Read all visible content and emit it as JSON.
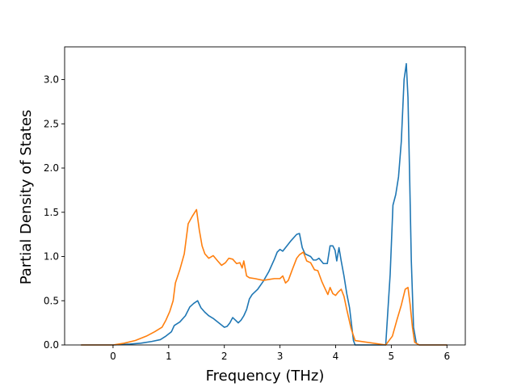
{
  "chart_data": {
    "type": "line",
    "xlabel": "Frequency (THz)",
    "ylabel": "Partial Density of States",
    "xlim": [
      -0.87,
      6.33
    ],
    "ylim": [
      0.0,
      3.37
    ],
    "xticks": [
      0,
      1,
      2,
      3,
      4,
      5,
      6
    ],
    "xtick_labels": [
      "0",
      "1",
      "2",
      "3",
      "4",
      "5",
      "6"
    ],
    "yticks": [
      0.0,
      0.5,
      1.0,
      1.5,
      2.0,
      2.5,
      3.0
    ],
    "ytick_labels": [
      "0.0",
      "0.5",
      "1.0",
      "1.5",
      "2.0",
      "2.5",
      "3.0"
    ],
    "grid": false,
    "series": [
      {
        "color": "#1f77b4",
        "x": [
          -0.57,
          0.0,
          0.3,
          0.5,
          0.7,
          0.85,
          0.95,
          1.05,
          1.1,
          1.2,
          1.3,
          1.38,
          1.45,
          1.52,
          1.58,
          1.65,
          1.72,
          1.8,
          1.9,
          2.0,
          2.05,
          2.1,
          2.15,
          2.2,
          2.25,
          2.3,
          2.35,
          2.4,
          2.45,
          2.5,
          2.6,
          2.7,
          2.8,
          2.9,
          2.95,
          3.0,
          3.05,
          3.1,
          3.2,
          3.3,
          3.35,
          3.4,
          3.45,
          3.55,
          3.6,
          3.65,
          3.7,
          3.78,
          3.85,
          3.9,
          3.95,
          3.99,
          4.02,
          4.06,
          4.1,
          4.15,
          4.2,
          4.25,
          4.32,
          4.35,
          4.9,
          4.98,
          5.03,
          5.08,
          5.13,
          5.18,
          5.23,
          5.27,
          5.3,
          5.33,
          5.36,
          5.4,
          5.45,
          5.5,
          6.0
        ],
        "y": [
          0.0,
          0.0,
          0.01,
          0.02,
          0.04,
          0.06,
          0.1,
          0.15,
          0.22,
          0.26,
          0.33,
          0.43,
          0.47,
          0.5,
          0.42,
          0.37,
          0.33,
          0.3,
          0.25,
          0.2,
          0.21,
          0.25,
          0.31,
          0.28,
          0.25,
          0.28,
          0.33,
          0.4,
          0.52,
          0.57,
          0.63,
          0.72,
          0.83,
          0.97,
          1.05,
          1.08,
          1.06,
          1.1,
          1.18,
          1.25,
          1.26,
          1.1,
          1.03,
          1.0,
          0.96,
          0.96,
          0.98,
          0.92,
          0.92,
          1.12,
          1.12,
          1.07,
          0.95,
          1.1,
          0.95,
          0.78,
          0.58,
          0.42,
          0.05,
          0.0,
          0.0,
          0.8,
          1.58,
          1.7,
          1.9,
          2.3,
          3.0,
          3.18,
          2.8,
          1.9,
          0.95,
          0.2,
          0.02,
          0.0,
          0.0
        ]
      },
      {
        "color": "#ff7f0e",
        "x": [
          -0.57,
          0.0,
          0.2,
          0.4,
          0.6,
          0.75,
          0.88,
          0.95,
          1.02,
          1.08,
          1.12,
          1.2,
          1.28,
          1.35,
          1.42,
          1.5,
          1.55,
          1.6,
          1.65,
          1.72,
          1.8,
          1.88,
          1.95,
          2.02,
          2.08,
          2.15,
          2.22,
          2.28,
          2.32,
          2.35,
          2.4,
          2.45,
          2.55,
          2.7,
          2.8,
          2.9,
          3.0,
          3.05,
          3.1,
          3.15,
          3.22,
          3.3,
          3.35,
          3.42,
          3.48,
          3.55,
          3.62,
          3.68,
          3.75,
          3.8,
          3.86,
          3.9,
          3.95,
          4.0,
          4.05,
          4.1,
          4.15,
          4.2,
          4.28,
          4.35,
          4.9,
          5.02,
          5.1,
          5.18,
          5.25,
          5.3,
          5.34,
          5.38,
          5.42,
          5.5,
          6.0
        ],
        "y": [
          0.0,
          0.0,
          0.02,
          0.05,
          0.1,
          0.15,
          0.2,
          0.28,
          0.38,
          0.5,
          0.7,
          0.85,
          1.03,
          1.37,
          1.45,
          1.53,
          1.3,
          1.12,
          1.03,
          0.98,
          1.01,
          0.95,
          0.9,
          0.93,
          0.98,
          0.97,
          0.92,
          0.93,
          0.87,
          0.95,
          0.78,
          0.76,
          0.75,
          0.73,
          0.74,
          0.75,
          0.75,
          0.78,
          0.7,
          0.73,
          0.85,
          0.98,
          1.02,
          1.05,
          0.95,
          0.93,
          0.85,
          0.84,
          0.72,
          0.65,
          0.57,
          0.65,
          0.58,
          0.56,
          0.6,
          0.63,
          0.55,
          0.4,
          0.18,
          0.05,
          0.0,
          0.1,
          0.28,
          0.45,
          0.63,
          0.65,
          0.45,
          0.2,
          0.03,
          0.0,
          0.0
        ]
      }
    ]
  }
}
